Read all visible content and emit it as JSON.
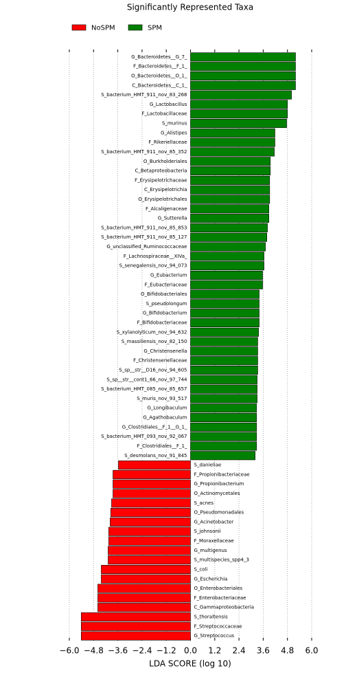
{
  "chart_data": {
    "type": "bar",
    "orientation": "horizontal",
    "title": "Significantly Represented Taxa",
    "xlabel": "LDA SCORE (log 10)",
    "xlim": [
      -6.0,
      6.0
    ],
    "xticks": [
      {
        "value": -6.0,
        "label": "−6.0"
      },
      {
        "value": -4.8,
        "label": "−4.8"
      },
      {
        "value": -3.6,
        "label": "−3.6"
      },
      {
        "value": -2.4,
        "label": "−2.4"
      },
      {
        "value": -1.2,
        "label": "−1.2"
      },
      {
        "value": 0,
        "label": "0.0"
      },
      1.2,
      2.4,
      3.6,
      4.8,
      {
        "value": 6.0,
        "label": "6.0"
      }
    ],
    "grid": true,
    "legend": "top-left",
    "categories": [
      "G_Bacteroidetes__G_7_",
      "F_Bacteroidetes__F_1_",
      "O_Bacteroidetes__O_1_",
      "C_Bacteroidetes__C_1_",
      "S_bacterium_HMT_911_nov_83_268",
      "G_Lactobacillus",
      "F_Lactobacillaceae",
      "S_murinus",
      "G_Alistipes",
      "F_Rikenellaceae",
      "S_bacterium_HMT_911_nov_85_352",
      "O_Burkholderiales",
      "C_Betaproteobacteria",
      "F_Erysipelotrichaceae",
      "C_Erysipelotrichia",
      "O_Erysipelotrichales",
      "F_Alcaligenaceae",
      "G_Sutterella",
      "S_bacterium_HMT_911_nov_85_853",
      "S_bacterium_HMT_911_nov_85_127",
      "G_unclassified_Ruminococcaceae",
      "F_Lachnospiraceae__XIVa_",
      "S_senegalensis_nov_94_073",
      "G_Eubacterium",
      "F_Eubacteriaceae",
      "O_Bifidobacteriales",
      "S_pseudolongum",
      "G_Bifidobacterium",
      "F_Bifidobacteriaceae",
      "S_xylanolyticum_nov_94_632",
      "S_massiliensis_nov_82_150",
      "G_Christensenella",
      "F_Christensenellaceae",
      "S_sp__str__D16_nov_94_605",
      "S_sp__str__cont1_66_nov_97_744",
      "S_bacterium_HMT_085_nov_85_657",
      "S_muris_nov_93_517",
      "G_Longibaculum",
      "G_Agathobaculum",
      "G_Clostridiales__F_1__G_1_",
      "S_bacterium_HMT_093_nov_92_067",
      "F_Clostridiales__F_1_",
      "S_desmolans_nov_91_845",
      "S_danieliae",
      "F_Propionibacteriaceae",
      "G_Propionibacterium",
      "O_Actinomycetales",
      "S_acnes",
      "O_Pseudomonadales",
      "G_Acinetobacter",
      "S_johnsonii",
      "F_Moraxellaceae",
      "G_multigenus",
      "S_multispecies_spp4_3",
      "S_coli",
      "G_Escherichia",
      "O_Enterobacteriales",
      "F_Enterobacteriaceae",
      "C_Gammaproteobacteria",
      "S_thoraltensis",
      "F_Streptococcaceae",
      "G_Streptococcus"
    ],
    "series": [
      {
        "name": "NoSPM",
        "color": "#ff0000",
        "values": [
          null,
          null,
          null,
          null,
          null,
          null,
          null,
          null,
          null,
          null,
          null,
          null,
          null,
          null,
          null,
          null,
          null,
          null,
          null,
          null,
          null,
          null,
          null,
          null,
          null,
          null,
          null,
          null,
          null,
          null,
          null,
          null,
          null,
          null,
          null,
          null,
          null,
          null,
          null,
          null,
          null,
          null,
          null,
          -3.57,
          -3.84,
          -3.84,
          -3.84,
          -3.91,
          -3.95,
          -3.98,
          -4.05,
          -4.05,
          -4.08,
          -4.08,
          -4.42,
          -4.42,
          -4.59,
          -4.59,
          -4.59,
          -5.41,
          -5.41,
          -5.41
        ]
      },
      {
        "name": "SPM",
        "color": "#008000",
        "values": [
          5.2,
          5.2,
          5.2,
          5.2,
          5.0,
          4.8,
          4.8,
          4.76,
          4.18,
          4.18,
          4.15,
          3.95,
          3.95,
          3.92,
          3.92,
          3.92,
          3.88,
          3.88,
          3.81,
          3.78,
          3.71,
          3.64,
          3.64,
          3.57,
          3.57,
          3.4,
          3.4,
          3.4,
          3.4,
          3.37,
          3.33,
          3.33,
          3.33,
          3.33,
          3.3,
          3.3,
          3.3,
          3.27,
          3.27,
          3.27,
          3.27,
          3.27,
          3.2,
          null,
          null,
          null,
          null,
          null,
          null,
          null,
          null,
          null,
          null,
          null,
          null,
          null,
          null,
          null,
          null,
          null,
          null,
          null
        ]
      }
    ]
  }
}
